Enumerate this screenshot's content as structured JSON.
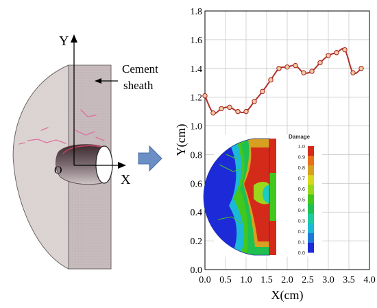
{
  "left_schematic": {
    "y_axis_label": "Y",
    "x_axis_label": "X",
    "origin_label": "O",
    "cement_label_line1": "Cement",
    "cement_label_line2": "sheath"
  },
  "colors": {
    "line": "#b0302a",
    "marker_fill": "#f6c9a0",
    "marker_edge": "#a02020",
    "arrow_fill": "#6b8fc4",
    "sheath": "#c9bdbf",
    "cement_disk": "#ddd6d4"
  },
  "chart_data": {
    "type": "line",
    "title": "",
    "xlabel": "X(cm)",
    "ylabel": "Y(cm)",
    "xlim": [
      0.0,
      4.0
    ],
    "ylim": [
      0.0,
      1.8
    ],
    "xticks": [
      "0.0",
      "0.5",
      "1.0",
      "1.5",
      "2.0",
      "2.5",
      "3.0",
      "3.5",
      "4.0"
    ],
    "yticks": [
      "0.0",
      "0.2",
      "0.4",
      "0.6",
      "0.8",
      "1.0",
      "1.2",
      "1.4",
      "1.6",
      "1.8"
    ],
    "grid": true,
    "series": [
      {
        "x": [
          0.0,
          0.2,
          0.4,
          0.6,
          0.8,
          1.0,
          1.2,
          1.4,
          1.6,
          1.8,
          2.0,
          2.2,
          2.4,
          2.6,
          2.8,
          3.0,
          3.2,
          3.4,
          3.6,
          3.8
        ],
        "y": [
          1.21,
          1.09,
          1.12,
          1.13,
          1.1,
          1.1,
          1.17,
          1.24,
          1.32,
          1.4,
          1.41,
          1.42,
          1.37,
          1.38,
          1.44,
          1.49,
          1.51,
          1.53,
          1.37,
          1.4
        ]
      }
    ]
  },
  "inset": {
    "title": "Damage",
    "levels": [
      "1.0",
      "0.9",
      "0.8",
      "0.7",
      "0.6",
      "0.5",
      "0.4",
      "0.3",
      "0.2",
      "0.1",
      "0.0"
    ],
    "colors": [
      "#d42a1a",
      "#e8701c",
      "#d8a020",
      "#d8d81c",
      "#9ad81c",
      "#42c81c",
      "#20c050",
      "#1ccc9c",
      "#1cb8d8",
      "#1c78d8",
      "#1c2ad8"
    ]
  }
}
